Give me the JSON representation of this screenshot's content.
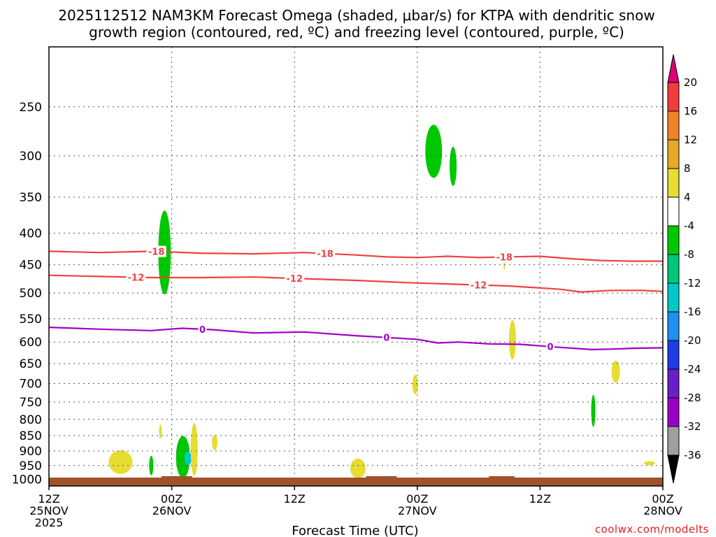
{
  "title_line1": "2025112512 NAM3KM Forecast Omega (shaded, μbar/s) for KTPA with dendritic snow",
  "title_line2": "growth region (contoured, red, ºC) and freezing level (contoured, purple, ºC)",
  "credit": "coolwx.com/modelts",
  "chart_data": {
    "type": "contour",
    "title": "2025112512 NAM3KM Forecast Omega (shaded, μbar/s) for KTPA with dendritic snow growth region (contoured, red, ºC) and freezing level (contoured, purple, ºC)",
    "xlabel": "Forecast Time (UTC)",
    "ylabel": "",
    "xlim": [
      0,
      60
    ],
    "ylim": [
      1025,
      200
    ],
    "yscale": "log",
    "grid": true,
    "x_ticks": [
      {
        "hour": 0,
        "line1": "12Z",
        "line2": "25NOV",
        "line3": "2025"
      },
      {
        "hour": 12,
        "line1": "00Z",
        "line2": "26NOV",
        "line3": ""
      },
      {
        "hour": 24,
        "line1": "12Z",
        "line2": "",
        "line3": ""
      },
      {
        "hour": 36,
        "line1": "00Z",
        "line2": "27NOV",
        "line3": ""
      },
      {
        "hour": 48,
        "line1": "12Z",
        "line2": "",
        "line3": ""
      },
      {
        "hour": 60,
        "line1": "00Z",
        "line2": "28NOV",
        "line3": ""
      }
    ],
    "y_ticks": [
      250,
      300,
      350,
      400,
      450,
      500,
      550,
      600,
      650,
      700,
      750,
      800,
      850,
      900,
      950,
      1000
    ],
    "colorbar": {
      "unit": "μbar/s",
      "levels": [
        -36,
        -32,
        -28,
        -24,
        -20,
        -16,
        -12,
        -8,
        -4,
        4,
        8,
        12,
        16,
        20
      ],
      "colors": [
        "#000000",
        "#a0a0a0",
        "#9b00c8",
        "#6a1ec8",
        "#1f3ce6",
        "#1e90f0",
        "#00c8c8",
        "#00c87a",
        "#00c800",
        "#ffffff",
        "#e6dc32",
        "#e6aa28",
        "#f08228",
        "#f03c3c",
        "#dc0078"
      ]
    },
    "contours": [
      {
        "label": "-18",
        "color": "#f04040",
        "label_at_hours": [
          10.5,
          27,
          44.5
        ],
        "points": [
          [
            0,
            428
          ],
          [
            5,
            430
          ],
          [
            10,
            428
          ],
          [
            15,
            431
          ],
          [
            20,
            432
          ],
          [
            25,
            430
          ],
          [
            30,
            434
          ],
          [
            33,
            437
          ],
          [
            36,
            438
          ],
          [
            39,
            436
          ],
          [
            42,
            438
          ],
          [
            45,
            437
          ],
          [
            48,
            436
          ],
          [
            51,
            440
          ],
          [
            54,
            443
          ],
          [
            57,
            444
          ],
          [
            60,
            444
          ]
        ]
      },
      {
        "label": "-12",
        "color": "#f04040",
        "label_at_hours": [
          8.5,
          24,
          42
        ],
        "points": [
          [
            0,
            468
          ],
          [
            5,
            470
          ],
          [
            10,
            472
          ],
          [
            15,
            472
          ],
          [
            20,
            471
          ],
          [
            25,
            474
          ],
          [
            30,
            477
          ],
          [
            35,
            481
          ],
          [
            40,
            484
          ],
          [
            45,
            487
          ],
          [
            50,
            493
          ],
          [
            52,
            498
          ],
          [
            55,
            495
          ],
          [
            58,
            495
          ],
          [
            60,
            497
          ]
        ]
      },
      {
        "label": "0",
        "color": "#a000c8",
        "label_at_hours": [
          15,
          33,
          49
        ],
        "points": [
          [
            0,
            568
          ],
          [
            5,
            572
          ],
          [
            10,
            575
          ],
          [
            13,
            570
          ],
          [
            16,
            573
          ],
          [
            20,
            580
          ],
          [
            25,
            578
          ],
          [
            30,
            586
          ],
          [
            33,
            590
          ],
          [
            36,
            594
          ],
          [
            38,
            602
          ],
          [
            40,
            600
          ],
          [
            43,
            604
          ],
          [
            46,
            605
          ],
          [
            50,
            612
          ],
          [
            53,
            617
          ],
          [
            55,
            616
          ],
          [
            57,
            614
          ],
          [
            60,
            613
          ]
        ]
      }
    ],
    "omega_cells": [
      {
        "hour": 11.3,
        "pressure": 430,
        "value": -6
      },
      {
        "hour": 37.6,
        "pressure": 295,
        "value": -6
      },
      {
        "hour": 39.5,
        "pressure": 312,
        "value": -6
      },
      {
        "hour": 7,
        "pressure": 938,
        "value": 5
      },
      {
        "hour": 10,
        "pressure": 950,
        "value": -6
      },
      {
        "hour": 10.9,
        "pressure": 837,
        "value": 5
      },
      {
        "hour": 13.1,
        "pressure": 920,
        "value": -6
      },
      {
        "hour": 13.6,
        "pressure": 925,
        "value": -14
      },
      {
        "hour": 14.2,
        "pressure": 895,
        "value": 6
      },
      {
        "hour": 16.2,
        "pressure": 872,
        "value": 5
      },
      {
        "hour": 30.2,
        "pressure": 960,
        "value": 5
      },
      {
        "hour": 35.8,
        "pressure": 703,
        "value": 5
      },
      {
        "hour": 44.5,
        "pressure": 450,
        "value": 5
      },
      {
        "hour": 45.3,
        "pressure": 595,
        "value": 5
      },
      {
        "hour": 53.2,
        "pressure": 775,
        "value": -6
      },
      {
        "hour": 55.4,
        "pressure": 670,
        "value": 5
      },
      {
        "hour": 58.7,
        "pressure": 942,
        "value": 5
      }
    ],
    "terrain_label": "surface"
  }
}
